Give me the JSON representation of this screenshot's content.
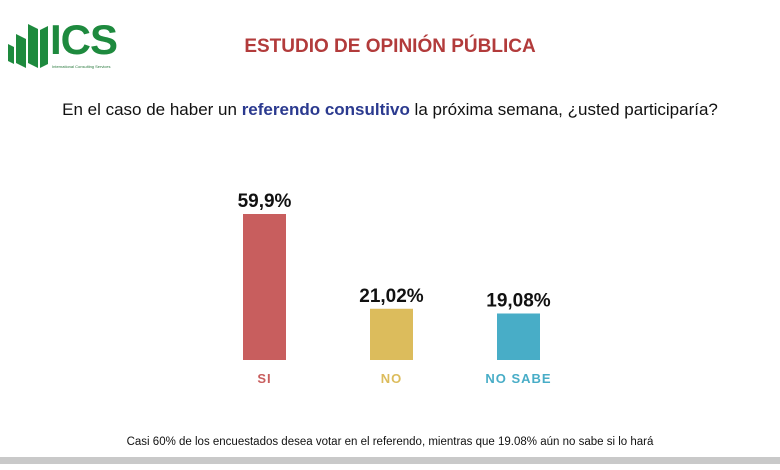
{
  "header": {
    "logo_text": "ICS",
    "logo_subtitle": "International Consulting Services",
    "title": "ESTUDIO DE OPINIÓN PÚBLICA"
  },
  "question": {
    "before": "En el caso de haber un ",
    "highlight": "referendo consultivo",
    "after": " la próxima semana, ¿usted participaría?"
  },
  "chart_data": {
    "type": "bar",
    "categories": [
      "SI",
      "NO",
      "NO SABE"
    ],
    "values": [
      59.9,
      21.02,
      19.08
    ],
    "data_labels": [
      "59,9%",
      "21,02%",
      "19,08%"
    ],
    "colors": [
      "#c85e5e",
      "#dcbc5c",
      "#48adc7"
    ],
    "ylim": [
      0,
      60
    ],
    "grid": false
  },
  "footer": {
    "note": "Casi 60% de los encuestados desea votar en el referendo, mientras que 19.08% aún no sabe si lo hará"
  }
}
